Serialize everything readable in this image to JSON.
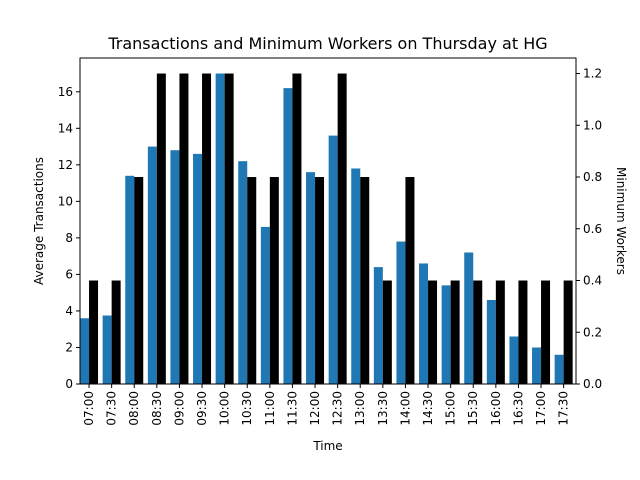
{
  "chart_data": {
    "type": "bar",
    "title": "Transactions and Minimum Workers on Thursday at HG",
    "xlabel": "Time",
    "ylabel_left": "Average Transactions",
    "ylabel_right": "Minimum Workers",
    "ylim_left": [
      0,
      17.85
    ],
    "ylim_right": [
      0,
      1.26
    ],
    "yticks_left": [
      0,
      2,
      4,
      6,
      8,
      10,
      12,
      14,
      16
    ],
    "yticks_right": [
      0.0,
      0.2,
      0.4,
      0.6,
      0.8,
      1.0,
      1.2
    ],
    "grid": false,
    "categories": [
      "07:00",
      "07:30",
      "08:00",
      "08:30",
      "09:00",
      "09:30",
      "10:00",
      "10:30",
      "11:00",
      "11:30",
      "12:00",
      "12:30",
      "13:00",
      "13:30",
      "14:00",
      "14:30",
      "15:00",
      "15:30",
      "16:00",
      "16:30",
      "17:00",
      "17:30"
    ],
    "series": [
      {
        "axis": "left",
        "color": "#1f77b4",
        "values": [
          3.6,
          3.75,
          11.4,
          13.0,
          12.8,
          12.6,
          17.0,
          12.2,
          8.6,
          16.2,
          11.6,
          13.6,
          11.8,
          6.4,
          7.8,
          6.6,
          5.4,
          7.2,
          4.6,
          2.6,
          2.0,
          1.6
        ]
      },
      {
        "axis": "right",
        "color": "#000000",
        "values": [
          0.4,
          0.4,
          0.8,
          1.2,
          1.2,
          1.2,
          1.2,
          0.8,
          0.8,
          1.2,
          0.8,
          1.2,
          0.8,
          0.4,
          0.8,
          0.4,
          0.4,
          0.4,
          0.4,
          0.4,
          0.4,
          0.4
        ]
      }
    ]
  }
}
